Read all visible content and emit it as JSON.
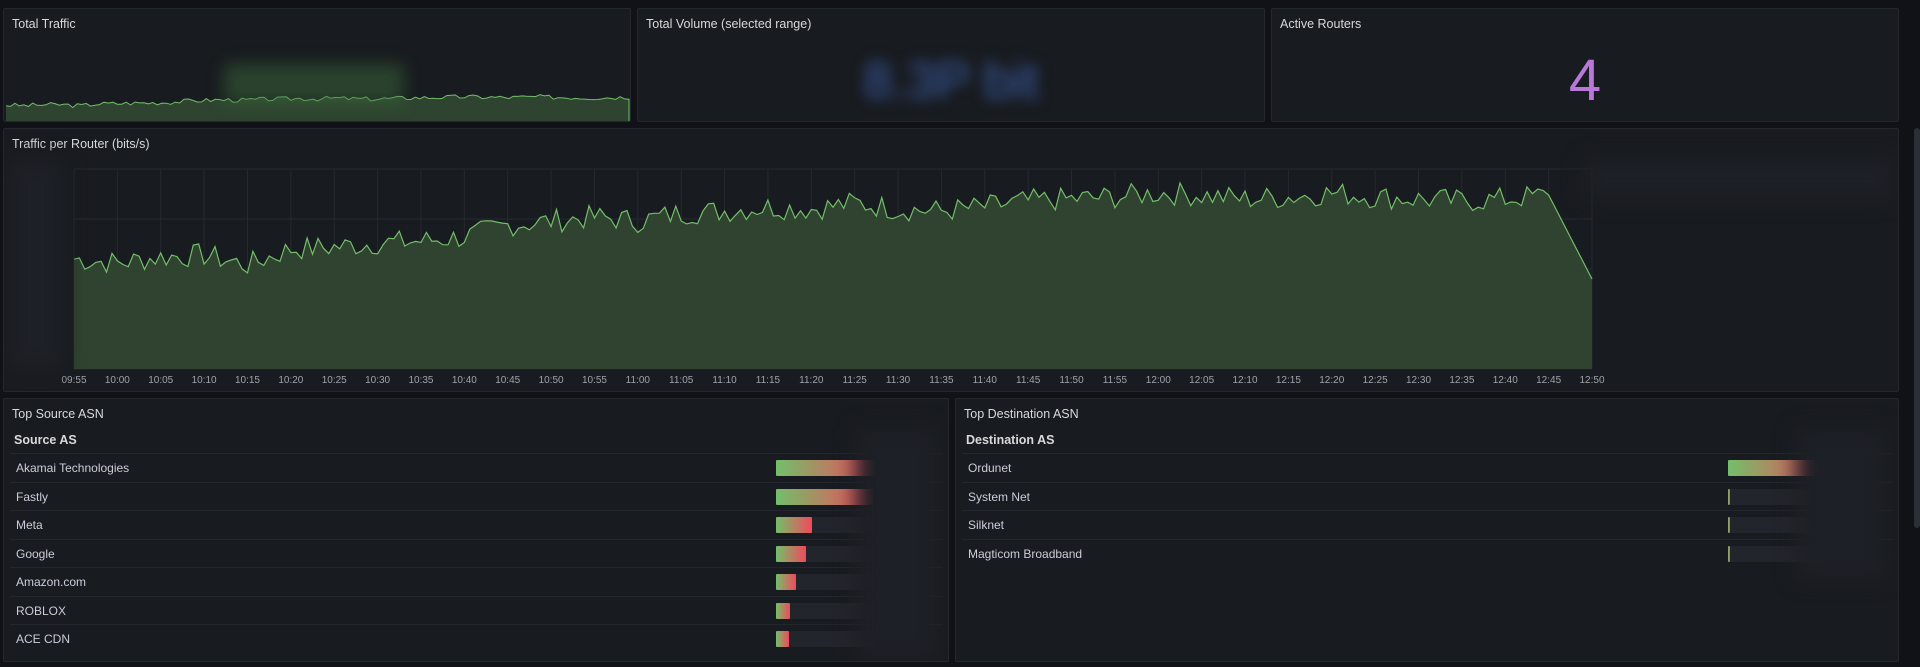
{
  "panels": {
    "total_traffic": {
      "title": "Total Traffic"
    },
    "total_volume": {
      "title": "Total Volume (selected range)",
      "value": "8.3P bit"
    },
    "active_routers": {
      "title": "Active Routers",
      "value": "4"
    },
    "traffic_per_router": {
      "title": "Traffic per Router (bits/s)"
    },
    "top_source": {
      "title": "Top Source ASN",
      "column": "Source AS",
      "rows": [
        {
          "label": "Akamai Technologies",
          "value": 1.0
        },
        {
          "label": "Fastly",
          "value": 0.97
        },
        {
          "label": "Meta",
          "value": 0.36
        },
        {
          "label": "Google",
          "value": 0.3
        },
        {
          "label": "Amazon.com",
          "value": 0.2
        },
        {
          "label": "ROBLOX",
          "value": 0.14
        },
        {
          "label": "ACE CDN",
          "value": 0.13
        }
      ]
    },
    "top_destination": {
      "title": "Top Destination ASN",
      "column": "Destination AS",
      "rows": [
        {
          "label": "Ordunet",
          "value": 1.0
        },
        {
          "label": "System Net",
          "value": 0.02
        },
        {
          "label": "Silknet",
          "value": 0.02
        },
        {
          "label": "Magticom Broadband",
          "value": 0.01
        }
      ]
    }
  },
  "chart_data": [
    {
      "type": "area",
      "x": [
        "09:55",
        "10:00",
        "10:05",
        "10:10",
        "10:15",
        "10:20",
        "10:25",
        "10:30",
        "10:35",
        "10:40",
        "10:45",
        "10:50",
        "10:55",
        "11:00",
        "11:05",
        "11:10",
        "11:15",
        "11:20",
        "11:25",
        "11:30",
        "11:35",
        "11:40",
        "11:45",
        "11:50",
        "11:55",
        "12:00",
        "12:05",
        "12:10",
        "12:15",
        "12:20",
        "12:25",
        "12:30",
        "12:35",
        "12:40",
        "12:45",
        "12:50"
      ],
      "series": [
        {
          "values": [
            0.55,
            0.53,
            0.56,
            0.57,
            0.52,
            0.6,
            0.61,
            0.63,
            0.64,
            0.66,
            0.72,
            0.74,
            0.76,
            0.74,
            0.78,
            0.79,
            0.81,
            0.8,
            0.83,
            0.8,
            0.79,
            0.81,
            0.84,
            0.85,
            0.86,
            0.88,
            0.87,
            0.85,
            0.86,
            0.88,
            0.86,
            0.85,
            0.84,
            0.85,
            0.87,
            0.45
          ]
        }
      ],
      "colors": {
        "line": "#73bf69",
        "fill": "#2f4330"
      }
    }
  ]
}
